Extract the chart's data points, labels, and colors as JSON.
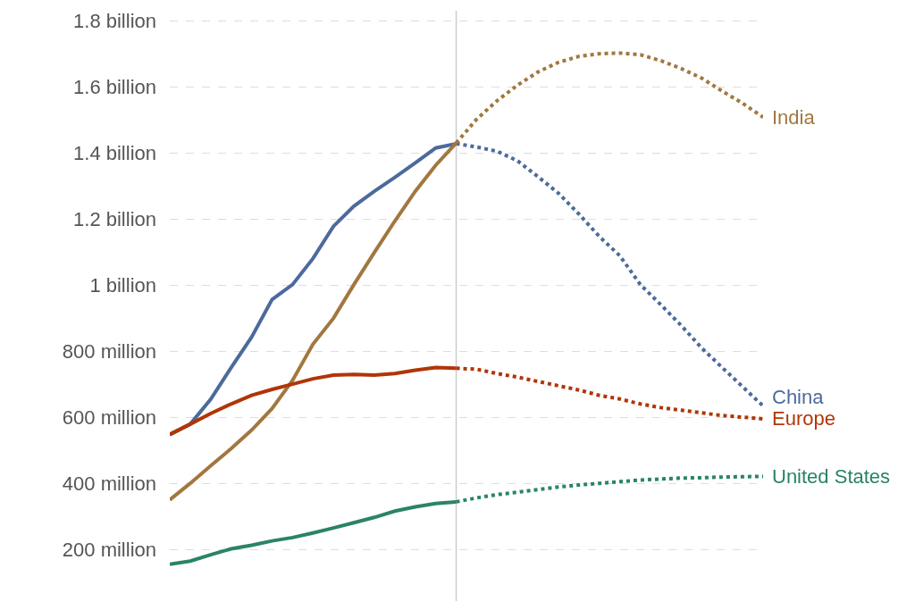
{
  "chart_data": {
    "type": "line",
    "categories": [
      null,
      null,
      null,
      null,
      null,
      null,
      null,
      null,
      null,
      null,
      null,
      null,
      null,
      null,
      null,
      null,
      null,
      null,
      null,
      null,
      null,
      null,
      null,
      null,
      null,
      null,
      null,
      null,
      null,
      null
    ],
    "series": [
      {
        "color": "#4c6a9c",
        "line_style": "solid",
        "values": [
          548000000,
          580000000,
          655000000,
          751000000,
          843000000,
          957000000,
          1002000000,
          1081000000,
          1178000000,
          1239000000,
          1284000000,
          1326000000,
          1370000000,
          1415000000,
          1428000000,
          null,
          null,
          null,
          null,
          null,
          null,
          null,
          null,
          null,
          null,
          null,
          null,
          null,
          null,
          null
        ]
      },
      {
        "name": "China",
        "color": "#4c6a9c",
        "line_style": "dotted",
        "values": [
          null,
          null,
          null,
          null,
          null,
          null,
          null,
          null,
          null,
          null,
          null,
          null,
          null,
          null,
          1428000000,
          1418000000,
          1405000000,
          1376000000,
          1328000000,
          1278000000,
          1215000000,
          1147000000,
          1089000000,
          1002000000,
          941000000,
          878000000,
          810000000,
          751000000,
          693000000,
          635000000
        ]
      },
      {
        "color": "#a2773f",
        "line_style": "solid",
        "values": [
          351000000,
          401000000,
          454000000,
          506000000,
          562000000,
          627000000,
          712000000,
          822000000,
          900000000,
          1002000000,
          1099000000,
          1194000000,
          1284000000,
          1363000000,
          1430000000,
          null,
          null,
          null,
          null,
          null,
          null,
          null,
          null,
          null,
          null,
          null,
          null,
          null,
          null,
          null
        ]
      },
      {
        "name": "India",
        "color": "#a2773f",
        "line_style": "dotted",
        "values": [
          null,
          null,
          null,
          null,
          null,
          null,
          null,
          null,
          null,
          null,
          null,
          null,
          null,
          null,
          1430000000,
          1502000000,
          1558000000,
          1605000000,
          1645000000,
          1674000000,
          1692000000,
          1700000000,
          1702000000,
          1697000000,
          1679000000,
          1655000000,
          1626000000,
          1587000000,
          1550000000,
          1508000000
        ]
      },
      {
        "color": "#b13507",
        "line_style": "solid",
        "values": [
          549000000,
          580000000,
          612000000,
          641000000,
          667000000,
          685000000,
          701000000,
          717000000,
          728000000,
          730000000,
          728000000,
          733000000,
          743000000,
          751000000,
          749000000,
          null,
          null,
          null,
          null,
          null,
          null,
          null,
          null,
          null,
          null,
          null,
          null,
          null,
          null,
          null
        ]
      },
      {
        "name": "Europe",
        "color": "#b13507",
        "line_style": "dotted",
        "values": [
          null,
          null,
          null,
          null,
          null,
          null,
          null,
          null,
          null,
          null,
          null,
          null,
          null,
          null,
          749000000,
          746000000,
          733000000,
          722000000,
          709000000,
          696000000,
          683000000,
          667000000,
          656000000,
          641000000,
          630000000,
          622000000,
          614000000,
          606000000,
          601000000,
          596000000
        ]
      },
      {
        "color": "#2a8465",
        "line_style": "solid",
        "values": [
          156000000,
          166000000,
          185000000,
          203000000,
          214000000,
          227000000,
          237000000,
          251000000,
          266000000,
          282000000,
          298000000,
          317000000,
          330000000,
          340000000,
          345000000,
          null,
          null,
          null,
          null,
          null,
          null,
          null,
          null,
          null,
          null,
          null,
          null,
          null,
          null,
          null
        ]
      },
      {
        "name": "United States",
        "color": "#2a8465",
        "line_style": "dotted",
        "values": [
          null,
          null,
          null,
          null,
          null,
          null,
          null,
          null,
          null,
          null,
          null,
          null,
          null,
          null,
          345000000,
          357000000,
          367000000,
          374000000,
          382000000,
          390000000,
          396000000,
          401000000,
          406000000,
          411000000,
          414000000,
          417000000,
          418000000,
          420000000,
          421000000,
          422000000
        ]
      }
    ],
    "ylim": [
      45000000,
      1830000000
    ],
    "yticks": [
      {
        "value": 200000000,
        "label": "200 million"
      },
      {
        "value": 400000000,
        "label": "400 million"
      },
      {
        "value": 600000000,
        "label": "600 million"
      },
      {
        "value": 800000000,
        "label": "800 million"
      },
      {
        "value": 1000000000,
        "label": "1 billion"
      },
      {
        "value": 1200000000,
        "label": "1.2 billion"
      },
      {
        "value": 1400000000,
        "label": "1.4 billion"
      },
      {
        "value": 1600000000,
        "label": "1.6 billion"
      },
      {
        "value": 1800000000,
        "label": "1.8 billion"
      }
    ],
    "grid": "y",
    "legend": false,
    "marker": "none"
  }
}
